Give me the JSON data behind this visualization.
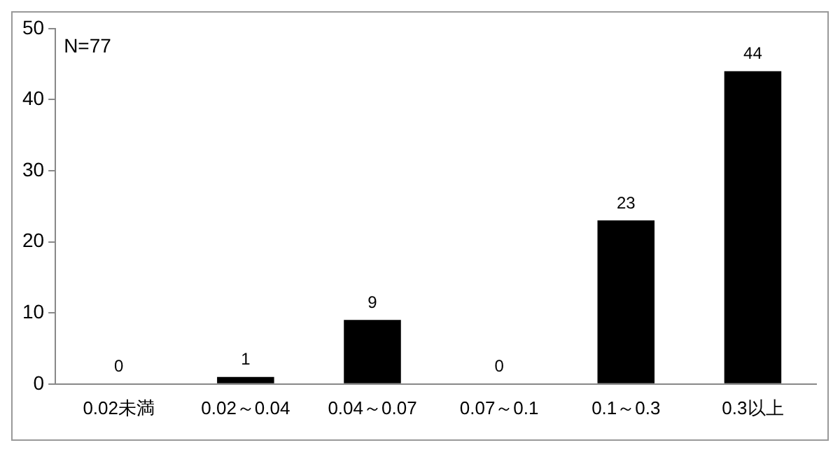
{
  "chart_data": {
    "type": "bar",
    "categories": [
      "0.02未満",
      "0.02～0.04",
      "0.04～0.07",
      "0.07～0.1",
      "0.1～0.3",
      "0.3以上"
    ],
    "values": [
      0,
      1,
      9,
      0,
      23,
      44
    ],
    "color": "#000000",
    "ylim": [
      0,
      50
    ],
    "yticks": [
      0,
      10,
      20,
      30,
      40,
      50
    ],
    "grid": false,
    "legend": false,
    "data_labels": true,
    "annotations": [
      "N=77"
    ]
  }
}
